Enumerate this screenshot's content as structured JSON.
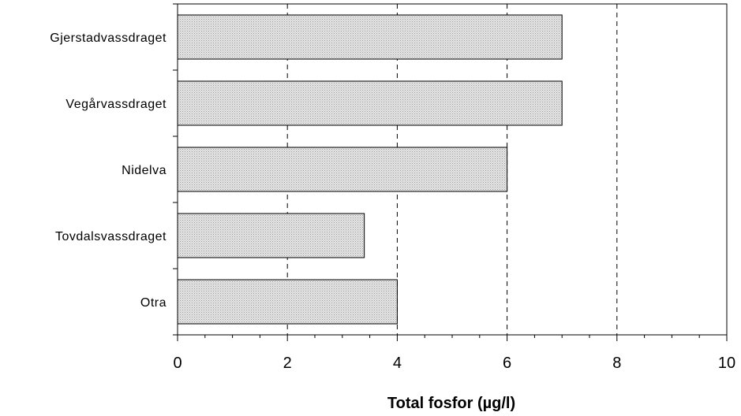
{
  "chart_data": {
    "type": "bar",
    "orientation": "horizontal",
    "categories": [
      "Gjerstadvassdraget",
      "Vegårvassdraget",
      "Nidelva",
      "Tovdalsvassdraget",
      "Otra"
    ],
    "values": [
      7,
      7,
      6,
      3.4,
      4
    ],
    "xlabel": "Total fosfor (µg/l)",
    "ylabel": "",
    "title": "",
    "xlim": [
      0,
      10
    ],
    "xticks": [
      "0",
      "2",
      "4",
      "6",
      "8",
      "10"
    ],
    "grid": "vertical dashed",
    "legend": "none",
    "bar_fill": "#dcdcdc",
    "bar_stroke": "#000000"
  }
}
